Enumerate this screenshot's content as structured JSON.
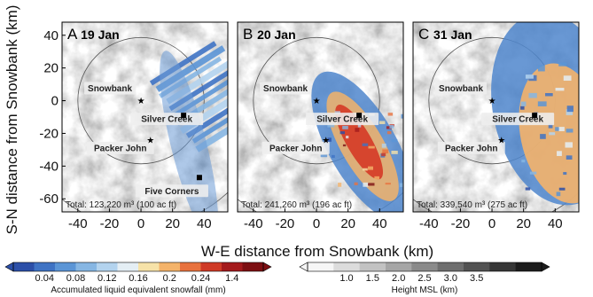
{
  "figure": {
    "ylabel": "S-N distance from Snowbank (km)",
    "xlabel": "W-E distance from Snowbank (km)",
    "x_ticks": [
      "-40",
      "-20",
      "0",
      "20",
      "40"
    ],
    "y_ticks": [
      "40",
      "20",
      "0",
      "-20",
      "-40",
      "-60"
    ]
  },
  "panels": [
    {
      "letter": "A",
      "date": "19 Jan",
      "total": "Total: 123,220 m³ (100 ac ft)",
      "snow_style": "streaks",
      "sites": [
        {
          "name": "Snowbank",
          "x": 0,
          "y": 0,
          "marker": "star",
          "label": "Snowbank"
        },
        {
          "name": "Silver Creek",
          "x": 27,
          "y": -9,
          "marker": "square",
          "label": "Silver Creek"
        },
        {
          "name": "Packer John",
          "x": 6,
          "y": -24,
          "marker": "star",
          "label": "Packer John"
        },
        {
          "name": "Five Corners",
          "x": 37,
          "y": -47,
          "marker": "square",
          "label": "Five Corners"
        }
      ]
    },
    {
      "letter": "B",
      "date": "20 Jan",
      "total": "Total: 241,260 m³ (196 ac ft)",
      "snow_style": "band",
      "sites": [
        {
          "name": "Snowbank",
          "x": 0,
          "y": 0,
          "marker": "star",
          "label": "Snowbank"
        },
        {
          "name": "Silver Creek",
          "x": 27,
          "y": -9,
          "marker": "square",
          "label": "Silver Creek"
        },
        {
          "name": "Packer John",
          "x": 6,
          "y": -24,
          "marker": "star",
          "label": "Packer John"
        }
      ]
    },
    {
      "letter": "C",
      "date": "31 Jan",
      "total": "Total: 339,540 m³ (275 ac ft)",
      "snow_style": "wide",
      "sites": [
        {
          "name": "Snowbank",
          "x": 0,
          "y": 0,
          "marker": "star",
          "label": "Snowbank"
        },
        {
          "name": "Silver Creek",
          "x": 27,
          "y": -9,
          "marker": "square",
          "label": "Silver Creek"
        },
        {
          "name": "Packer John",
          "x": 6,
          "y": -24,
          "marker": "star",
          "label": "Packer John"
        }
      ]
    }
  ],
  "colorbars": [
    {
      "label": "Accumulated liquid equivalent snowfall (mm)",
      "ticks": [
        "0.04",
        "0.08",
        "0.12",
        "0.16",
        "0.2",
        "0.24",
        "1.4"
      ],
      "colors": [
        "#2c4fa8",
        "#3f73c4",
        "#5b95d6",
        "#86b6e3",
        "#b3d3ee",
        "#e4eef4",
        "#f6e2a8",
        "#f4b36a",
        "#e8723e",
        "#cf3a26",
        "#a41a1c",
        "#7d0f12"
      ]
    },
    {
      "label": "Height MSL (km)",
      "ticks": [
        "1.0",
        "1.5",
        "2.0",
        "2.5",
        "3.0",
        "3.5"
      ],
      "colors": [
        "#f6f6f6",
        "#dcdcdc",
        "#c2c2c2",
        "#a6a6a6",
        "#8a8a8a",
        "#6e6e6e",
        "#525252",
        "#363636",
        "#1c1c1c"
      ]
    }
  ],
  "chart_data": {
    "type": "heatmap",
    "title": "",
    "xlabel": "W-E distance from Snowbank (km)",
    "ylabel": "S-N distance from Snowbank (km)",
    "xlim": [
      -50,
      55
    ],
    "ylim": [
      -68,
      48
    ],
    "grid": false,
    "range_ring_radii_km": [
      40,
      80
    ],
    "panels": [
      {
        "label": "A 19 Jan",
        "total_m3": 123220,
        "total_acft": 100
      },
      {
        "label": "B 20 Jan",
        "total_m3": 241260,
        "total_acft": 196
      },
      {
        "label": "C 31 Jan",
        "total_m3": 339540,
        "total_acft": 275
      }
    ],
    "snowfall_colorbar": {
      "label": "Accumulated liquid equivalent snowfall (mm)",
      "ticks": [
        0.04,
        0.08,
        0.12,
        0.16,
        0.2,
        0.24,
        1.4
      ]
    },
    "terrain_colorbar": {
      "label": "Height MSL (km)",
      "ticks": [
        1.0,
        1.5,
        2.0,
        2.5,
        3.0,
        3.5
      ]
    }
  }
}
